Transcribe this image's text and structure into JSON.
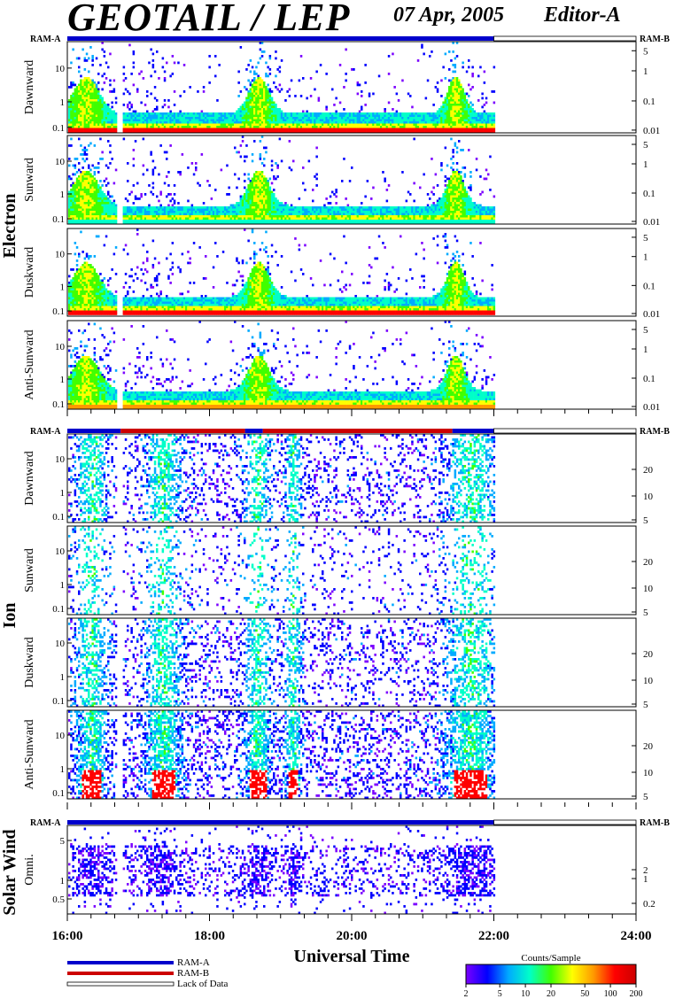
{
  "header": {
    "title": "GEOTAIL / LEP",
    "date": "07 Apr, 2005",
    "editor": "Editor-A"
  },
  "legend": {
    "ram_a": "RAM-A",
    "ram_b": "RAM-B",
    "lack": "Lack of Data",
    "colorbar_title": "Counts/Sample",
    "colorbar_ticks": [
      "2",
      "5",
      "10",
      "20",
      "50",
      "100",
      "200"
    ],
    "colorbar_colors": [
      "#7b00ff",
      "#0000ff",
      "#00aaff",
      "#00ffc8",
      "#40ff00",
      "#ffff00",
      "#ff9900",
      "#ff0000",
      "#cc0000"
    ]
  },
  "chart_data": {
    "type": "heatmap",
    "xlabel": "Universal Time",
    "x_ticks": [
      "16:00",
      "18:00",
      "20:00",
      "22:00",
      "24:00"
    ],
    "x_range": [
      "16:00",
      "24:00"
    ],
    "data_end": "22:00",
    "data_gap": [
      "16:41",
      "16:46"
    ],
    "groups": [
      {
        "name": "Electron",
        "ram_left": "RAM-A",
        "ram_right": "RAM-B",
        "ram_segments": [
          {
            "start": "16:00",
            "end": "22:00",
            "mode": "RAM-A"
          },
          {
            "start": "22:00",
            "end": "24:00",
            "mode": "lack"
          }
        ],
        "left_ticks": [
          "10",
          "1",
          "0.1"
        ],
        "right_ticks": [
          "5",
          "1",
          "0.1",
          "0.01"
        ],
        "panels": [
          {
            "label": "Dawnward",
            "base_color": "#ff0000",
            "mid_color": "#00ffc8",
            "peaks": [
              {
                "t": "18:41",
                "v": "high"
              },
              {
                "t": "21:27",
                "v": "high"
              }
            ]
          },
          {
            "label": "Sunward",
            "base_color": "#00ffc8",
            "mid_color": "#0000ff",
            "peaks": [
              {
                "t": "18:41",
                "v": "high"
              },
              {
                "t": "21:27",
                "v": "high"
              }
            ]
          },
          {
            "label": "Duskward",
            "base_color": "#ff0000",
            "mid_color": "#00ffc8",
            "peaks": [
              {
                "t": "18:41",
                "v": "high"
              },
              {
                "t": "21:27",
                "v": "high"
              }
            ]
          },
          {
            "label": "Anti-Sunward",
            "base_color": "#ff9900",
            "mid_color": "#00ffc8",
            "peaks": [
              {
                "t": "18:20",
                "v": "medium"
              },
              {
                "t": "21:27",
                "v": "high"
              }
            ]
          }
        ]
      },
      {
        "name": "Ion",
        "ram_left": "RAM-A",
        "ram_right": "RAM-B",
        "ram_segments": [
          {
            "start": "16:00",
            "end": "16:45",
            "mode": "RAM-A"
          },
          {
            "start": "16:45",
            "end": "18:30",
            "mode": "RAM-B"
          },
          {
            "start": "18:30",
            "end": "18:45",
            "mode": "RAM-A"
          },
          {
            "start": "18:45",
            "end": "21:25",
            "mode": "RAM-B"
          },
          {
            "start": "21:25",
            "end": "22:00",
            "mode": "RAM-A"
          },
          {
            "start": "22:00",
            "end": "24:00",
            "mode": "lack"
          }
        ],
        "left_ticks": [
          "10",
          "1",
          "0.1"
        ],
        "right_ticks": [
          "20",
          "10",
          "5"
        ],
        "panels": [
          {
            "label": "Dawnward",
            "density": "medium"
          },
          {
            "label": "Sunward",
            "density": "low"
          },
          {
            "label": "Duskward",
            "density": "medium"
          },
          {
            "label": "Anti-Sunward",
            "density": "high"
          }
        ]
      },
      {
        "name": "Solar Wind",
        "ram_left": "RAM-A",
        "ram_right": "RAM-B",
        "ram_segments": [
          {
            "start": "16:00",
            "end": "22:00",
            "mode": "RAM-A"
          },
          {
            "start": "22:00",
            "end": "24:00",
            "mode": "lack"
          }
        ],
        "left_ticks": [
          "5",
          "1",
          "0.5"
        ],
        "right_ticks": [
          "2",
          "1",
          "0.2"
        ],
        "panels": [
          {
            "label": "Omni.",
            "density": "medium"
          }
        ]
      }
    ]
  }
}
